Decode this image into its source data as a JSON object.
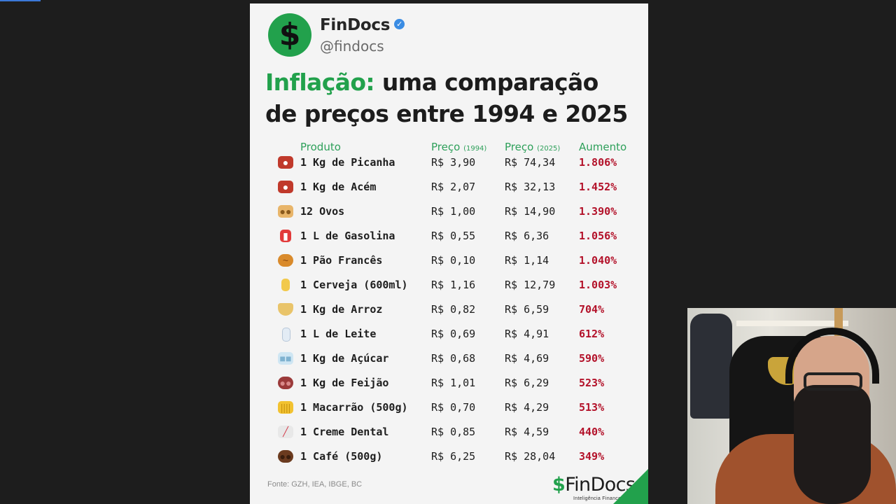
{
  "post": {
    "account_name": "FinDocs",
    "account_handle": "@findocs",
    "verified_icon": "verified-check-icon",
    "avatar_glyph": "$",
    "title_highlight": "Inflação:",
    "title_line1_rest": " uma comparação",
    "title_line2": "de preços entre 1994 e 2025",
    "source": "Fonte: GZH, IEA, IBGE, BC",
    "brand_dollar": "$",
    "brand_name": "FinDocs",
    "brand_tagline": "Inteligência Financeira",
    "accent_color": "#22a14c",
    "increase_color": "#b3122a"
  },
  "table": {
    "headers": {
      "product": "Produto",
      "price_1994": "Preço",
      "price_1994_year": "(1994)",
      "price_2025": "Preço",
      "price_2025_year": "(2025)",
      "increase": "Aumento"
    },
    "rows": [
      {
        "icon": "meat-icon",
        "product": "1 Kg de Picanha",
        "price_1994": "R$ 3,90",
        "price_2025": "R$ 74,34",
        "increase": "1.806%"
      },
      {
        "icon": "meat-icon",
        "product": "1 Kg de Acém",
        "price_1994": "R$ 2,07",
        "price_2025": "R$ 32,13",
        "increase": "1.452%"
      },
      {
        "icon": "eggs-icon",
        "product": "12 Ovos",
        "price_1994": "R$ 1,00",
        "price_2025": "R$ 14,90",
        "increase": "1.390%"
      },
      {
        "icon": "fuel-pump-icon",
        "product": "1 L de Gasolina",
        "price_1994": "R$ 0,55",
        "price_2025": "R$ 6,36",
        "increase": "1.056%"
      },
      {
        "icon": "bread-icon",
        "product": "1 Pão Francês",
        "price_1994": "R$ 0,10",
        "price_2025": "R$ 1,14",
        "increase": "1.040%"
      },
      {
        "icon": "beer-icon",
        "product": "1 Cerveja (600ml)",
        "price_1994": "R$ 1,16",
        "price_2025": "R$ 12,79",
        "increase": "1.003%"
      },
      {
        "icon": "rice-bowl-icon",
        "product": "1 Kg de Arroz",
        "price_1994": "R$ 0,82",
        "price_2025": "R$ 6,59",
        "increase": "704%"
      },
      {
        "icon": "milk-bottle-icon",
        "product": "1 L de Leite",
        "price_1994": "R$ 0,69",
        "price_2025": "R$ 4,91",
        "increase": "612%"
      },
      {
        "icon": "sugar-cubes-icon",
        "product": "1 Kg de Açúcar",
        "price_1994": "R$ 0,68",
        "price_2025": "R$ 4,69",
        "increase": "590%"
      },
      {
        "icon": "beans-icon",
        "product": "1 Kg de Feijão",
        "price_1994": "R$ 1,01",
        "price_2025": "R$ 6,29",
        "increase": "523%"
      },
      {
        "icon": "pasta-icon",
        "product": "1 Macarrão (500g)",
        "price_1994": "R$ 0,70",
        "price_2025": "R$ 4,29",
        "increase": "513%"
      },
      {
        "icon": "toothpaste-icon",
        "product": "1 Creme Dental",
        "price_1994": "R$ 0,85",
        "price_2025": "R$ 4,59",
        "increase": "440%"
      },
      {
        "icon": "coffee-bean-icon",
        "product": "1 Café (500g)",
        "price_1994": "R$ 6,25",
        "price_2025": "R$ 28,04",
        "increase": "349%"
      }
    ]
  }
}
